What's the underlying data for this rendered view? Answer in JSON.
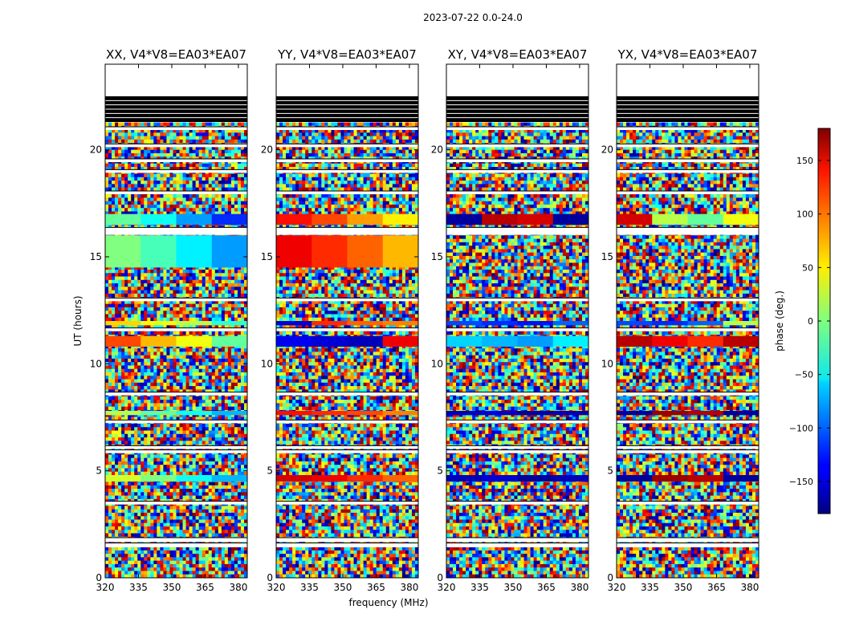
{
  "chart_data": {
    "type": "heatmap",
    "title": "2023-07-22 0.0-24.0",
    "xlabel": "frequency (MHz)",
    "ylabel": "UT (hours)",
    "xlim": [
      320,
      384
    ],
    "ylim": [
      0,
      24
    ],
    "x_ticks": [
      320,
      335,
      350,
      365,
      380
    ],
    "y_ticks": [
      0,
      5,
      10,
      15,
      20
    ],
    "panels": [
      {
        "title": "XX, V4*V8=EA03*EA07",
        "bands": [
          {
            "t0": 16.5,
            "t1": 17.0,
            "phase": [
              -10,
              -40,
              -80,
              -120
            ]
          },
          {
            "t0": 14.5,
            "t1": 16.0,
            "phase": [
              0,
              -20,
              -50,
              -80
            ]
          },
          {
            "t0": 11.8,
            "t1": 12.0,
            "phase": [
              60,
              40,
              20,
              -30
            ]
          },
          {
            "t0": 10.8,
            "t1": 11.3,
            "phase": [
              110,
              70,
              40,
              -10
            ]
          },
          {
            "t0": 7.6,
            "t1": 7.8,
            "phase": [
              20,
              -10,
              -40,
              -70
            ]
          },
          {
            "t0": 4.5,
            "t1": 4.8,
            "phase": [
              30,
              0,
              -40,
              -70
            ]
          }
        ]
      },
      {
        "title": "YY, V4*V8=EA03*EA07",
        "bands": [
          {
            "t0": 16.5,
            "t1": 17.0,
            "phase": [
              130,
              110,
              80,
              50
            ]
          },
          {
            "t0": 14.5,
            "t1": 16.0,
            "phase": [
              140,
              120,
              100,
              70
            ]
          },
          {
            "t0": 11.8,
            "t1": 12.0,
            "phase": [
              -150,
              120,
              100,
              90
            ]
          },
          {
            "t0": 10.8,
            "t1": 11.3,
            "phase": [
              -140,
              -150,
              -160,
              140
            ]
          },
          {
            "t0": 7.6,
            "t1": 7.8,
            "phase": [
              130,
              120,
              110,
              90
            ]
          },
          {
            "t0": 4.5,
            "t1": 4.8,
            "phase": [
              150,
              140,
              120,
              100
            ]
          }
        ]
      },
      {
        "title": "XY, V4*V8=EA03*EA07",
        "bands": [
          {
            "t0": 16.5,
            "t1": 17.0,
            "phase": [
              -170,
              160,
              150,
              -170
            ]
          },
          {
            "t0": 11.8,
            "t1": 12.0,
            "phase": [
              -110,
              -120,
              -130,
              -100
            ]
          },
          {
            "t0": 10.8,
            "t1": 11.3,
            "phase": [
              -60,
              -70,
              -80,
              -50
            ]
          },
          {
            "t0": 7.6,
            "t1": 7.8,
            "phase": [
              -160,
              -150,
              -170,
              -160
            ]
          },
          {
            "t0": 4.5,
            "t1": 4.8,
            "phase": [
              -160,
              -150,
              -170,
              -160
            ]
          }
        ]
      },
      {
        "title": "YX, V4*V8=EA03*EA07",
        "bands": [
          {
            "t0": 16.5,
            "t1": 17.0,
            "phase": [
              150,
              20,
              -10,
              40
            ]
          },
          {
            "t0": 11.8,
            "t1": 12.0,
            "phase": [
              -110,
              -120,
              -100,
              20
            ]
          },
          {
            "t0": 10.8,
            "t1": 11.3,
            "phase": [
              160,
              140,
              120,
              160
            ]
          },
          {
            "t0": 7.6,
            "t1": 7.8,
            "phase": [
              -170,
              170,
              160,
              -170
            ]
          },
          {
            "t0": 4.5,
            "t1": 4.8,
            "phase": [
              -170,
              170,
              160,
              -170
            ]
          }
        ]
      }
    ],
    "flagged_rows": [
      1.5,
      1.55,
      1.75,
      1.8,
      3.5,
      5.9,
      6.1,
      7.3,
      8.6,
      11.6,
      13.0,
      16.1,
      16.2,
      16.3,
      18.0,
      19.0,
      19.5,
      20.2,
      21.0
    ],
    "empty_range": [
      22.6,
      24.0
    ],
    "black_range": [
      21.3,
      22.5
    ],
    "colorbar": {
      "label": "phase (deg.)",
      "range": [
        -180,
        180
      ],
      "ticks": [
        -150,
        -100,
        -50,
        0,
        50,
        100,
        150
      ]
    }
  }
}
